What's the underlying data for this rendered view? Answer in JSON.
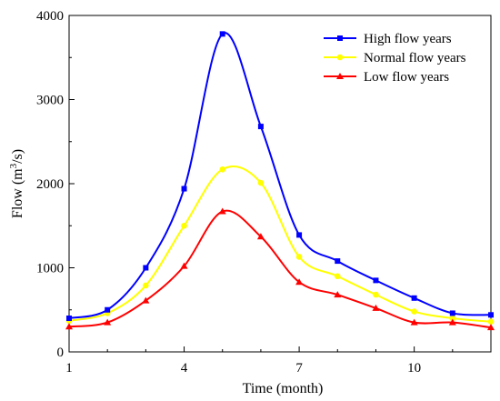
{
  "chart_data": {
    "type": "line",
    "title": "",
    "xlabel": "Time (month)",
    "ylabel": {
      "base": "Flow (m",
      "sup": "3",
      "tail": "/s)"
    },
    "xlim": [
      1,
      12
    ],
    "ylim": [
      0,
      4000
    ],
    "xticks": [
      1,
      4,
      7,
      10
    ],
    "yticks": [
      0,
      1000,
      2000,
      3000,
      4000
    ],
    "grid": false,
    "legend_position": "top-right",
    "x": [
      1,
      2,
      3,
      4,
      5,
      6,
      7,
      8,
      9,
      10,
      11,
      12
    ],
    "series": [
      {
        "name": "High flow years",
        "color": "#0000ff",
        "marker": "square",
        "values": [
          400,
          500,
          1000,
          1940,
          3780,
          2680,
          1390,
          1080,
          850,
          640,
          460,
          440
        ]
      },
      {
        "name": "Normal flow years",
        "color": "#ffff00",
        "marker": "circle",
        "values": [
          370,
          460,
          790,
          1500,
          2170,
          2010,
          1130,
          900,
          680,
          480,
          400,
          360
        ]
      },
      {
        "name": "Low flow years",
        "color": "#ff0000",
        "marker": "triangle",
        "values": [
          300,
          350,
          610,
          1020,
          1670,
          1370,
          830,
          680,
          520,
          350,
          350,
          290
        ]
      }
    ]
  }
}
